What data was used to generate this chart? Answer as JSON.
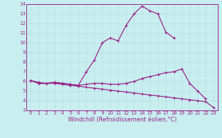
{
  "xlabel": "Windchill (Refroidissement éolien,°C)",
  "x": [
    0,
    1,
    2,
    3,
    4,
    5,
    6,
    7,
    8,
    9,
    10,
    11,
    12,
    13,
    14,
    15,
    16,
    17,
    18,
    19,
    20,
    21,
    22,
    23
  ],
  "line_peak": [
    6.1,
    5.8,
    5.8,
    5.9,
    5.8,
    5.7,
    5.6,
    7.0,
    8.2,
    10.0,
    10.5,
    10.2,
    11.8,
    13.0,
    13.8,
    13.3,
    13.0,
    11.1,
    10.5,
    null,
    null,
    null,
    null,
    null
  ],
  "line_mid": [
    6.1,
    5.8,
    5.8,
    5.9,
    5.8,
    5.7,
    5.6,
    5.7,
    5.8,
    5.8,
    5.7,
    5.7,
    5.8,
    6.0,
    6.3,
    6.5,
    6.7,
    6.9,
    7.0,
    7.3,
    5.8,
    5.0,
    4.2,
    null
  ],
  "line_diag": [
    6.1,
    5.9,
    5.8,
    5.8,
    5.7,
    5.6,
    5.5,
    5.4,
    5.3,
    5.2,
    5.1,
    5.0,
    4.9,
    4.8,
    4.7,
    4.6,
    4.5,
    4.4,
    4.3,
    4.2,
    4.1,
    4.0,
    3.9,
    3.3
  ],
  "bg_color": "#c8eef0",
  "grid_color": "#b8dde0",
  "line_color": "#992288",
  "ylim": [
    3,
    14
  ],
  "xlim": [
    -0.5,
    23.5
  ],
  "yticks": [
    3,
    4,
    5,
    6,
    7,
    8,
    9,
    10,
    11,
    12,
    13,
    14
  ],
  "xticks": [
    0,
    1,
    2,
    3,
    4,
    5,
    6,
    7,
    8,
    9,
    10,
    11,
    12,
    13,
    14,
    15,
    16,
    17,
    18,
    19,
    20,
    21,
    22,
    23
  ],
  "tick_fontsize": 5,
  "xlabel_fontsize": 6,
  "marker": "+",
  "markersize": 3,
  "linewidth": 0.9
}
